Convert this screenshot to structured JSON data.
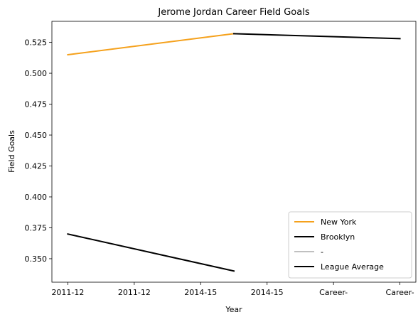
{
  "chart_data": {
    "type": "line",
    "title": "Jerome Jordan Career Field Goals",
    "xlabel": "Year",
    "ylabel": "Field Goals",
    "categories": [
      "2011-12",
      "2011-12",
      "2014-15",
      "2014-15",
      "Career-",
      "Career-"
    ],
    "ylim": [
      0.331,
      0.542
    ],
    "yticks": [
      "0.350",
      "0.375",
      "0.400",
      "0.425",
      "0.450",
      "0.475",
      "0.500",
      "0.525"
    ],
    "grid": false,
    "legend_position": "lower-right",
    "series": [
      {
        "name": "New York",
        "color": "#f5a11c",
        "points": [
          [
            0,
            0.515
          ],
          [
            2.5,
            0.532
          ]
        ]
      },
      {
        "name": "Brooklyn",
        "color": "#000000",
        "points": [
          [
            0,
            0.37
          ],
          [
            2.5,
            0.34
          ]
        ]
      },
      {
        "name": "-",
        "color": "#c0c0c0",
        "points": []
      },
      {
        "name": "League Average",
        "color": "#000000",
        "points": [
          [
            2.5,
            0.532
          ],
          [
            5,
            0.528
          ]
        ]
      }
    ]
  }
}
